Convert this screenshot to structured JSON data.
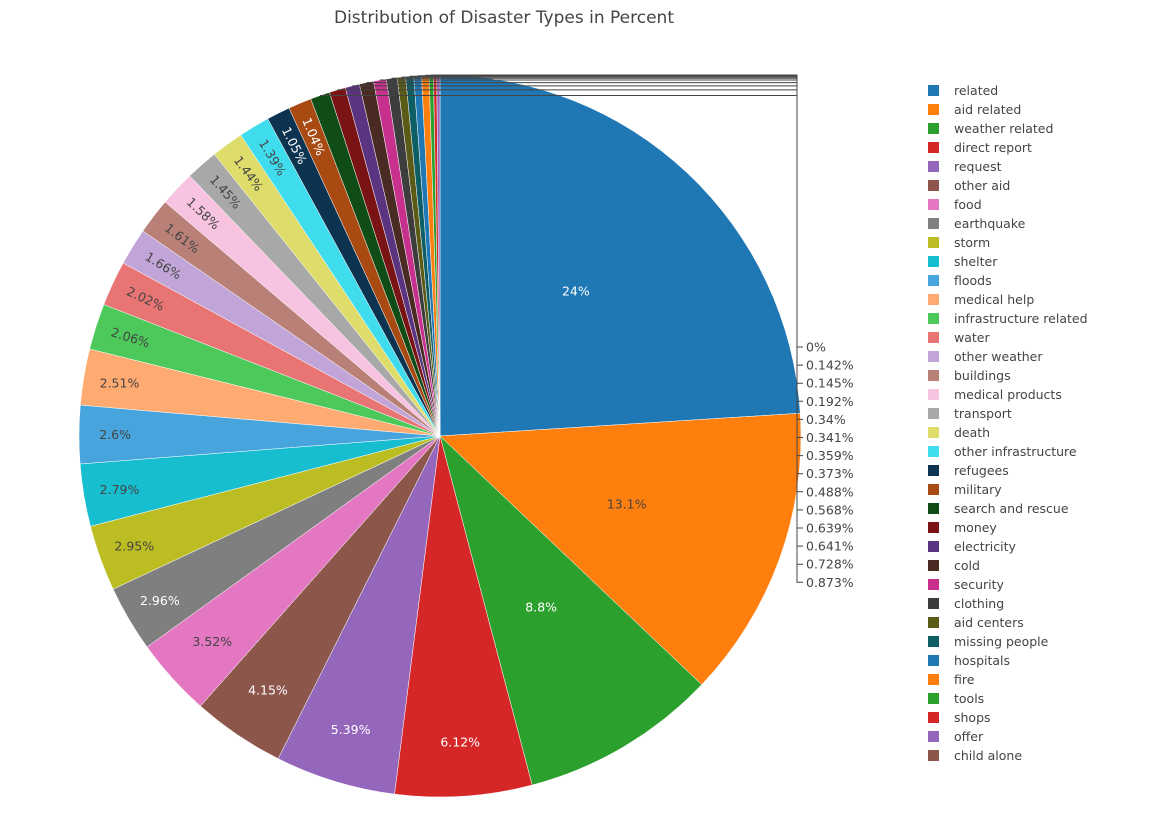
{
  "chart_data": {
    "type": "pie",
    "title": "Distribution of Disaster Types in Percent",
    "label_suffix": "%",
    "slices": [
      {
        "label": "related",
        "value": 24,
        "value_label": "24",
        "color": "#1f77b4"
      },
      {
        "label": "aid related",
        "value": 13.1,
        "value_label": "13.1",
        "color": "#ff7f0e"
      },
      {
        "label": "weather related",
        "value": 8.8,
        "value_label": "8.8",
        "color": "#2ca02c"
      },
      {
        "label": "direct report",
        "value": 6.12,
        "value_label": "6.12",
        "color": "#d62728"
      },
      {
        "label": "request",
        "value": 5.39,
        "value_label": "5.39",
        "color": "#9467bd"
      },
      {
        "label": "other aid",
        "value": 4.15,
        "value_label": "4.15",
        "color": "#8c564b"
      },
      {
        "label": "food",
        "value": 3.52,
        "value_label": "3.52",
        "color": "#e377c2"
      },
      {
        "label": "earthquake",
        "value": 2.96,
        "value_label": "2.96",
        "color": "#7f7f7f"
      },
      {
        "label": "storm",
        "value": 2.95,
        "value_label": "2.95",
        "color": "#bcbd22"
      },
      {
        "label": "shelter",
        "value": 2.79,
        "value_label": "2.79",
        "color": "#17becf"
      },
      {
        "label": "floods",
        "value": 2.6,
        "value_label": "2.6",
        "color": "#48a4dd"
      },
      {
        "label": "medical help",
        "value": 2.51,
        "value_label": "2.51",
        "color": "#ffaa70"
      },
      {
        "label": "infrastructure related",
        "value": 2.06,
        "value_label": "2.06",
        "color": "#4cc95a"
      },
      {
        "label": "water",
        "value": 2.02,
        "value_label": "2.02",
        "color": "#e87474"
      },
      {
        "label": "other weather",
        "value": 1.66,
        "value_label": "1.66",
        "color": "#c2a5d8"
      },
      {
        "label": "buildings",
        "value": 1.61,
        "value_label": "1.61",
        "color": "#b98077"
      },
      {
        "label": "medical products",
        "value": 1.58,
        "value_label": "1.58",
        "color": "#f7c3e0"
      },
      {
        "label": "transport",
        "value": 1.45,
        "value_label": "1.45",
        "color": "#a8a8a8"
      },
      {
        "label": "death",
        "value": 1.44,
        "value_label": "1.44",
        "color": "#dedc6a"
      },
      {
        "label": "other infrastructure",
        "value": 1.39,
        "value_label": "1.39",
        "color": "#3fdcee"
      },
      {
        "label": "refugees",
        "value": 1.05,
        "value_label": "1.05",
        "color": "#0c3350"
      },
      {
        "label": "military",
        "value": 1.04,
        "value_label": "1.04",
        "color": "#a94a12"
      },
      {
        "label": "search and rescue",
        "value": 0.873,
        "value_label": "0.873",
        "color": "#104d16"
      },
      {
        "label": "money",
        "value": 0.728,
        "value_label": "0.728",
        "color": "#7a1414"
      },
      {
        "label": "electricity",
        "value": 0.641,
        "value_label": "0.641",
        "color": "#5a3480"
      },
      {
        "label": "cold",
        "value": 0.639,
        "value_label": "0.639",
        "color": "#4a2b24"
      },
      {
        "label": "security",
        "value": 0.568,
        "value_label": "0.568",
        "color": "#c7308d"
      },
      {
        "label": "clothing",
        "value": 0.488,
        "value_label": "0.488",
        "color": "#3d3d3d"
      },
      {
        "label": "aid centers",
        "value": 0.373,
        "value_label": "0.373",
        "color": "#5b5a16"
      },
      {
        "label": "missing people",
        "value": 0.359,
        "value_label": "0.359",
        "color": "#0e5e66"
      },
      {
        "label": "hospitals",
        "value": 0.341,
        "value_label": "0.341",
        "color": "#1f77b4"
      },
      {
        "label": "fire",
        "value": 0.34,
        "value_label": "0.34",
        "color": "#ff7f0e"
      },
      {
        "label": "tools",
        "value": 0.192,
        "value_label": "0.192",
        "color": "#2ca02c"
      },
      {
        "label": "shops",
        "value": 0.145,
        "value_label": "0.145",
        "color": "#d62728"
      },
      {
        "label": "offer",
        "value": 0.142,
        "value_label": "0.142",
        "color": "#9467bd"
      },
      {
        "label": "child alone",
        "value": 0,
        "value_label": "0",
        "color": "#8c564b"
      }
    ]
  }
}
